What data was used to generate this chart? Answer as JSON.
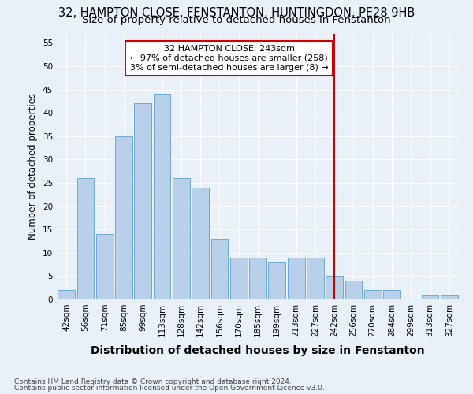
{
  "title": "32, HAMPTON CLOSE, FENSTANTON, HUNTINGDON, PE28 9HB",
  "subtitle": "Size of property relative to detached houses in Fenstanton",
  "xlabel": "Distribution of detached houses by size in Fenstanton",
  "ylabel": "Number of detached properties",
  "categories": [
    "42sqm",
    "56sqm",
    "71sqm",
    "85sqm",
    "99sqm",
    "113sqm",
    "128sqm",
    "142sqm",
    "156sqm",
    "170sqm",
    "185sqm",
    "199sqm",
    "213sqm",
    "227sqm",
    "242sqm",
    "256sqm",
    "270sqm",
    "284sqm",
    "299sqm",
    "313sqm",
    "327sqm"
  ],
  "values": [
    2,
    26,
    14,
    35,
    42,
    44,
    26,
    24,
    13,
    9,
    9,
    8,
    9,
    9,
    5,
    4,
    2,
    2,
    0,
    1,
    1
  ],
  "bar_color": "#b8d0ea",
  "bar_edge_color": "#6aaad4",
  "vline_x_idx": 14,
  "vline_color": "#cc0000",
  "annotation_line1": "32 HAMPTON CLOSE: 243sqm",
  "annotation_line2": "← 97% of detached houses are smaller (258)",
  "annotation_line3": "3% of semi-detached houses are larger (8) →",
  "annotation_box_color": "#ffffff",
  "annotation_box_edge": "#cc0000",
  "ylim": [
    0,
    57
  ],
  "yticks": [
    0,
    5,
    10,
    15,
    20,
    25,
    30,
    35,
    40,
    45,
    50,
    55
  ],
  "background_color": "#eaf0f8",
  "grid_color": "#ffffff",
  "footer_line1": "Contains HM Land Registry data © Crown copyright and database right 2024.",
  "footer_line2": "Contains public sector information licensed under the Open Government Licence v3.0.",
  "title_fontsize": 10.5,
  "subtitle_fontsize": 9.5,
  "xlabel_fontsize": 10,
  "ylabel_fontsize": 8.5,
  "tick_fontsize": 7.5,
  "annotation_fontsize": 8,
  "footer_fontsize": 6.5
}
